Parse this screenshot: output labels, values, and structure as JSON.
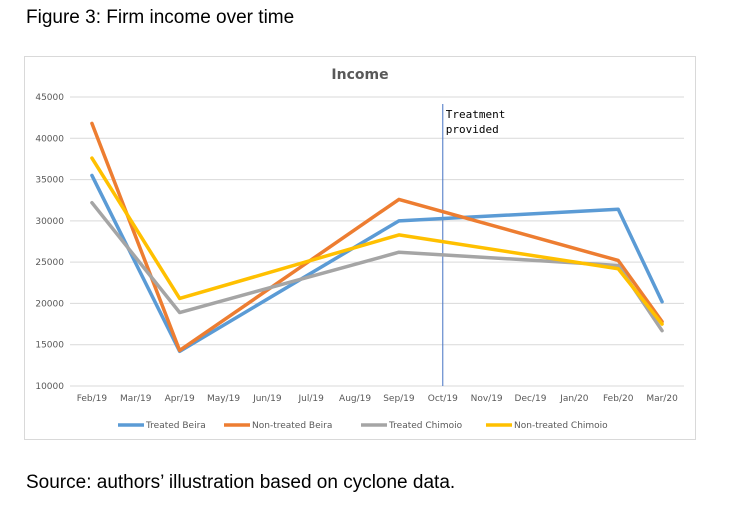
{
  "figure_title": "Figure 3: Firm income over time",
  "source_note": "Source: authors’ illustration based on cyclone data.",
  "chart_data": {
    "type": "line",
    "title": "Income",
    "xlabel": "",
    "ylabel": "",
    "categories": [
      "Feb/19",
      "Mar/19",
      "Apr/19",
      "May/19",
      "Jun/19",
      "Jul/19",
      "Aug/19",
      "Sep/19",
      "Oct/19",
      "Nov/19",
      "Dec/19",
      "Jan/20",
      "Feb/20",
      "Mar/20"
    ],
    "ylim": [
      10000,
      45000
    ],
    "yticks": [
      10000,
      15000,
      20000,
      25000,
      30000,
      35000,
      40000,
      45000
    ],
    "grid": true,
    "legend_position": "bottom",
    "annotation": {
      "lines": [
        "Treatment",
        "provided"
      ],
      "at_category": "Oct/19"
    },
    "series": [
      {
        "name": "Treated Beira",
        "color": "#5b9bd5",
        "points": [
          [
            "Feb/19",
            35500
          ],
          [
            "Apr/19",
            14200
          ],
          [
            "Sep/19",
            30000
          ],
          [
            "Feb/20",
            31400
          ],
          [
            "Mar/20",
            20200
          ]
        ]
      },
      {
        "name": "Non-treated Beira",
        "color": "#ed7d31",
        "points": [
          [
            "Feb/19",
            41800
          ],
          [
            "Apr/19",
            14300
          ],
          [
            "Sep/19",
            32600
          ],
          [
            "Feb/20",
            25200
          ],
          [
            "Mar/20",
            17800
          ]
        ]
      },
      {
        "name": "Treated Chimoio",
        "color": "#a5a5a5",
        "points": [
          [
            "Feb/19",
            32200
          ],
          [
            "Apr/19",
            18900
          ],
          [
            "Sep/19",
            26200
          ],
          [
            "Feb/20",
            24600
          ],
          [
            "Mar/20",
            16700
          ]
        ]
      },
      {
        "name": "Non-treated Chimoio",
        "color": "#ffc000",
        "points": [
          [
            "Feb/19",
            37600
          ],
          [
            "Apr/19",
            20600
          ],
          [
            "Sep/19",
            28300
          ],
          [
            "Feb/20",
            24200
          ],
          [
            "Mar/20",
            17500
          ]
        ]
      }
    ]
  }
}
